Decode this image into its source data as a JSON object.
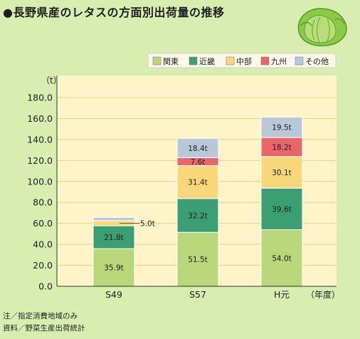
{
  "title": "●長野県産のレタスの方面別出荷量の推移",
  "notes": [
    "注／指定消費地域のみ",
    "資料／野菜生産出荷統計"
  ],
  "colors": {
    "frame": "#d9edb0",
    "plot_bg": "#fff4c8",
    "grid": "#f2cf80",
    "axis": "#333333"
  },
  "chart_data": {
    "type": "bar",
    "stacked": true,
    "categories": [
      "S49",
      "S57",
      "H元"
    ],
    "ylim": [
      0,
      180
    ],
    "yticks": [
      "0.0",
      "20.0",
      "40.0",
      "60.0",
      "80.0",
      "100.0",
      "120.0",
      "140.0",
      "160.0",
      "180.0"
    ],
    "ytick_values": [
      0,
      20,
      40,
      60,
      80,
      100,
      120,
      140,
      160,
      180
    ],
    "ylabel": "（t）",
    "xlabel": "（年度）",
    "legend_position": "top-right",
    "grid": true,
    "series": [
      {
        "name": "関東",
        "color": "#b8d77a",
        "values": [
          35.9,
          51.5,
          54.0
        ],
        "labels": [
          "35.9t",
          "51.5t",
          "54.0t"
        ]
      },
      {
        "name": "近畿",
        "color": "#3a9e72",
        "values": [
          21.8,
          32.2,
          39.6
        ],
        "labels": [
          "21.8t",
          "32.2t",
          "39.6t"
        ]
      },
      {
        "name": "中部",
        "color": "#f8d67a",
        "values": [
          5.0,
          31.4,
          30.1
        ],
        "labels": [
          "5.0t",
          "31.4t",
          "30.1t"
        ]
      },
      {
        "name": "九州",
        "color": "#e8666a",
        "values": [
          0,
          7.6,
          18.2
        ],
        "labels": [
          "",
          "7.6t",
          "18.2t"
        ]
      },
      {
        "name": "その他",
        "color": "#b8c8d8",
        "values": [
          3,
          18.4,
          19.5
        ],
        "labels": [
          "",
          "18.4t",
          "19.5t"
        ]
      }
    ]
  }
}
